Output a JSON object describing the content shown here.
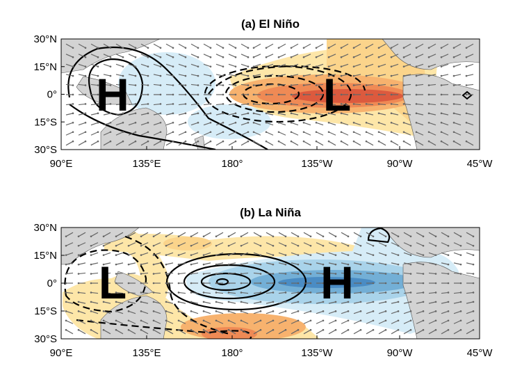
{
  "panels": [
    {
      "title": "(a) El Niño",
      "labels": [
        "H",
        "L"
      ]
    },
    {
      "title": "(b) La Niña",
      "labels": [
        "L",
        "H"
      ]
    }
  ],
  "lat_ticks": [
    "30°N",
    "15°N",
    "0°",
    "15°S",
    "30°S"
  ],
  "lon_ticks": [
    "90°E",
    "135°E",
    "180°",
    "135°W",
    "90°W",
    "45°W"
  ]
}
